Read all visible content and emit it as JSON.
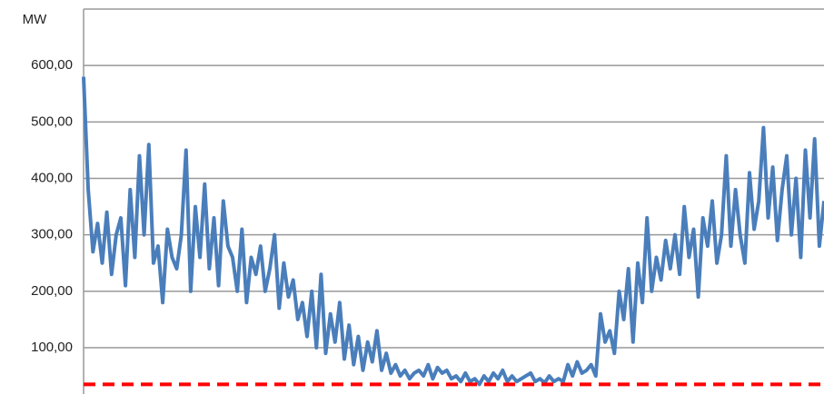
{
  "chart_data": {
    "type": "line",
    "ylabel": "MW",
    "categories": [
      null,
      null,
      null,
      null,
      null,
      null,
      null,
      null,
      null,
      null,
      null,
      null,
      null,
      null,
      null,
      null,
      null,
      null,
      null,
      null,
      null,
      null,
      null,
      null,
      null,
      null,
      null,
      null,
      null,
      null,
      null,
      null,
      null,
      null,
      null,
      null,
      null,
      null,
      null,
      null,
      null,
      null,
      null,
      null,
      null,
      null,
      null,
      null,
      null,
      null,
      null,
      null,
      null,
      null,
      null,
      null,
      null,
      null,
      null,
      null,
      null,
      null,
      null,
      null,
      null,
      null,
      null,
      null,
      null,
      null,
      null,
      null,
      null,
      null,
      null,
      null,
      null,
      null,
      null,
      null,
      null,
      null,
      null,
      null,
      null,
      null,
      null,
      null,
      null,
      null,
      null,
      null,
      null,
      null,
      null,
      null,
      null,
      null,
      null,
      null,
      null,
      null,
      null,
      null,
      null,
      null,
      null,
      null,
      null,
      null,
      null,
      null,
      null,
      null,
      null,
      null,
      null,
      null,
      null,
      null,
      null,
      null,
      null,
      null,
      null,
      null,
      null,
      null,
      null,
      null,
      null,
      null,
      null,
      null,
      null,
      null,
      null,
      null,
      null,
      null,
      null,
      null,
      null,
      null,
      null,
      null,
      null,
      null,
      null,
      null,
      null,
      null,
      null,
      null,
      null,
      null,
      null,
      null,
      null,
      null
    ],
    "series": [
      {
        "color": "#4a7ebb",
        "values": [
          580,
          380,
          270,
          320,
          250,
          340,
          230,
          300,
          330,
          210,
          380,
          260,
          440,
          300,
          460,
          250,
          280,
          180,
          310,
          260,
          240,
          300,
          450,
          200,
          350,
          260,
          390,
          240,
          330,
          210,
          360,
          280,
          260,
          200,
          310,
          180,
          260,
          230,
          280,
          200,
          240,
          300,
          170,
          250,
          190,
          220,
          150,
          180,
          120,
          200,
          100,
          230,
          90,
          160,
          110,
          180,
          80,
          140,
          70,
          120,
          60,
          110,
          75,
          130,
          60,
          90,
          55,
          70,
          50,
          60,
          45,
          55,
          60,
          50,
          70,
          45,
          65,
          55,
          60,
          45,
          50,
          40,
          55,
          40,
          45,
          35,
          50,
          40,
          55,
          45,
          60,
          40,
          50,
          40,
          45,
          50,
          55,
          40,
          45,
          38,
          50,
          40,
          45,
          40,
          70,
          50,
          75,
          55,
          60,
          70,
          50,
          160,
          110,
          130,
          90,
          200,
          150,
          240,
          110,
          250,
          180,
          330,
          200,
          260,
          220,
          290,
          240,
          300,
          230,
          350,
          260,
          310,
          190,
          330,
          280,
          360,
          250,
          300,
          440,
          280,
          380,
          300,
          250,
          410,
          310,
          360,
          490,
          330,
          420,
          290,
          380,
          440,
          300,
          400,
          260,
          450,
          330,
          470,
          280,
          360
        ]
      }
    ],
    "reference_lines": [
      {
        "value": 35,
        "color": "#ff0000",
        "style": "dashed"
      }
    ],
    "ylim": [
      18,
      700
    ],
    "yticks": [
      {
        "value": 100,
        "label": "100,00"
      },
      {
        "value": 200,
        "label": "200,00"
      },
      {
        "value": 300,
        "label": "300,00"
      },
      {
        "value": 400,
        "label": "400,00"
      },
      {
        "value": 500,
        "label": "500,00"
      },
      {
        "value": 600,
        "label": "600,00"
      }
    ],
    "grid": true
  }
}
